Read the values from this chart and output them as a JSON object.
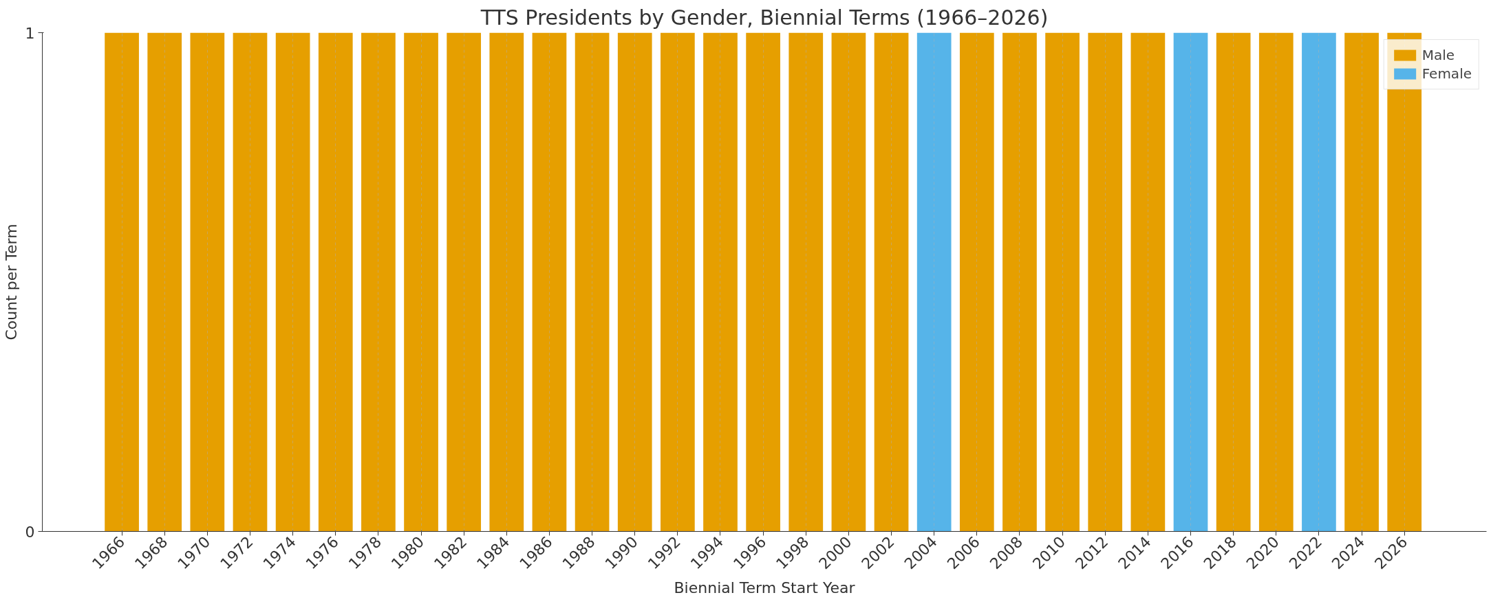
{
  "chart_data": {
    "type": "bar",
    "title": "TTS Presidents by Gender, Biennial Terms (1966–2026)",
    "xlabel": "Biennial Term Start Year",
    "ylabel": "Count per Term",
    "categories": [
      "1966",
      "1968",
      "1970",
      "1972",
      "1974",
      "1976",
      "1978",
      "1980",
      "1982",
      "1984",
      "1986",
      "1988",
      "1990",
      "1992",
      "1994",
      "1996",
      "1998",
      "2000",
      "2002",
      "2004",
      "2006",
      "2008",
      "2010",
      "2012",
      "2014",
      "2016",
      "2018",
      "2020",
      "2022",
      "2024",
      "2026"
    ],
    "series": [
      {
        "name": "Male",
        "color": "#e69f00",
        "values": [
          1,
          1,
          1,
          1,
          1,
          1,
          1,
          1,
          1,
          1,
          1,
          1,
          1,
          1,
          1,
          1,
          1,
          1,
          1,
          0,
          1,
          1,
          1,
          1,
          1,
          0,
          1,
          1,
          0,
          1,
          1
        ]
      },
      {
        "name": "Female",
        "color": "#56b4e9",
        "values": [
          0,
          0,
          0,
          0,
          0,
          0,
          0,
          0,
          0,
          0,
          0,
          0,
          0,
          0,
          0,
          0,
          0,
          0,
          0,
          1,
          0,
          0,
          0,
          0,
          0,
          1,
          0,
          0,
          1,
          0,
          0
        ]
      }
    ],
    "ylim": [
      0,
      1
    ],
    "yticks": [
      0,
      1
    ],
    "grid": true,
    "legend": "top right"
  }
}
